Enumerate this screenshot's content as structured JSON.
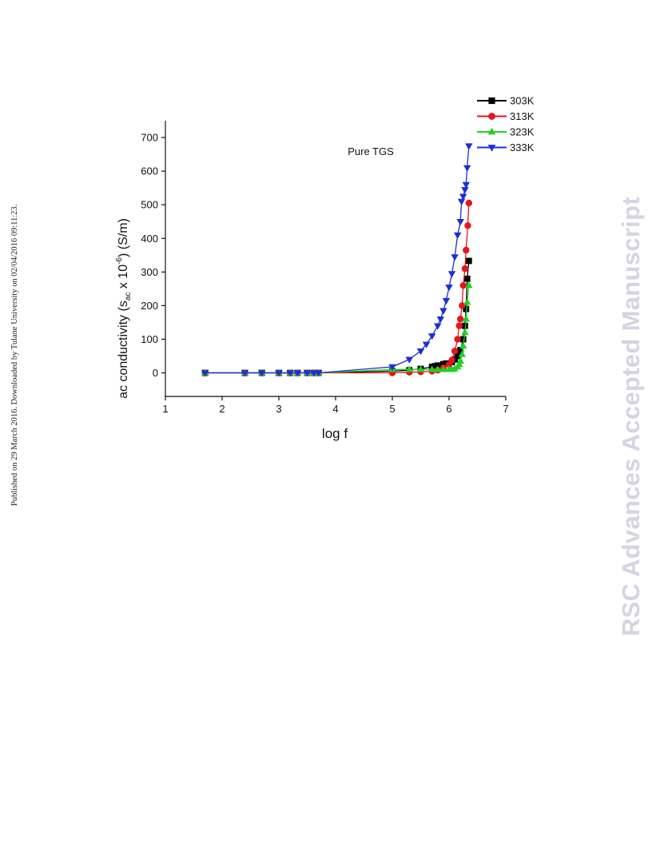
{
  "side_note": "Published on 29 March 2016. Downloaded by Tulane University on 02/04/2016 09:11:23.",
  "watermark": "RSC Advances Accepted Manuscript",
  "chart_data": {
    "type": "line",
    "annotation": "Pure TGS",
    "xlabel": "log f",
    "ylabel_main": "ac conductivity (s",
    "ylabel_sub": "ac",
    "ylabel_mid": " x 10",
    "ylabel_sup": "-6",
    "ylabel_end": ") (S/m)",
    "xlim": [
      1,
      7
    ],
    "ylim": [
      -70,
      750
    ],
    "xticks": [
      1,
      2,
      3,
      4,
      5,
      6,
      7
    ],
    "yticks": [
      0,
      100,
      200,
      300,
      400,
      500,
      600,
      700
    ],
    "legend_position": "top-right, outside plot",
    "grid": false,
    "series": [
      {
        "name": "303K",
        "color": "#000000",
        "marker": "square",
        "x": [
          1.7,
          2.4,
          2.7,
          3.0,
          3.2,
          3.33,
          3.5,
          3.62,
          3.7,
          5.0,
          5.3,
          5.5,
          5.7,
          5.75,
          5.8,
          5.9,
          5.95,
          6.05,
          6.1,
          6.15,
          6.2,
          6.25,
          6.28,
          6.3,
          6.32,
          6.35
        ],
        "y": [
          0,
          0,
          0,
          0,
          0,
          0,
          0,
          0,
          0,
          5,
          8,
          12,
          18,
          20,
          22,
          26,
          28,
          32,
          40,
          50,
          68,
          100,
          140,
          190,
          280,
          333
        ]
      },
      {
        "name": "313K",
        "color": "#e8141e",
        "marker": "circle",
        "x": [
          1.7,
          2.4,
          2.7,
          3.0,
          3.2,
          3.33,
          3.5,
          3.62,
          3.7,
          5.0,
          5.3,
          5.5,
          5.7,
          5.8,
          5.9,
          6.0,
          6.05,
          6.1,
          6.15,
          6.18,
          6.2,
          6.23,
          6.25,
          6.28,
          6.3,
          6.33,
          6.35
        ],
        "y": [
          0,
          0,
          0,
          0,
          0,
          0,
          0,
          0,
          0,
          0,
          2,
          3,
          5,
          8,
          15,
          25,
          38,
          65,
          100,
          140,
          160,
          200,
          260,
          310,
          365,
          438,
          505
        ]
      },
      {
        "name": "323K",
        "color": "#22d022",
        "marker": "triangle-up",
        "x": [
          1.7,
          2.4,
          2.7,
          3.0,
          3.2,
          3.33,
          3.5,
          3.62,
          3.7,
          5.0,
          5.3,
          5.5,
          5.7,
          5.8,
          5.9,
          6.0,
          6.05,
          6.1,
          6.15,
          6.18,
          6.2,
          6.23,
          6.25,
          6.28,
          6.3,
          6.32,
          6.35
        ],
        "y": [
          0,
          0,
          0,
          0,
          0,
          0,
          0,
          0,
          0,
          10,
          10,
          10,
          10,
          10,
          10,
          10,
          10,
          12,
          18,
          25,
          35,
          55,
          80,
          120,
          160,
          210,
          260
        ]
      },
      {
        "name": "333K",
        "color": "#1b2fd6",
        "marker": "triangle-down",
        "x": [
          1.7,
          2.4,
          2.7,
          3.0,
          3.2,
          3.33,
          3.5,
          3.62,
          3.7,
          5.0,
          5.3,
          5.5,
          5.6,
          5.7,
          5.8,
          5.85,
          5.9,
          5.95,
          6.0,
          6.05,
          6.1,
          6.15,
          6.2,
          6.22,
          6.25,
          6.28,
          6.3,
          6.32,
          6.35
        ],
        "y": [
          0,
          0,
          0,
          0,
          0,
          0,
          0,
          0,
          0,
          18,
          40,
          65,
          85,
          110,
          140,
          160,
          185,
          215,
          255,
          295,
          345,
          410,
          450,
          510,
          525,
          545,
          560,
          610,
          675
        ]
      }
    ]
  }
}
